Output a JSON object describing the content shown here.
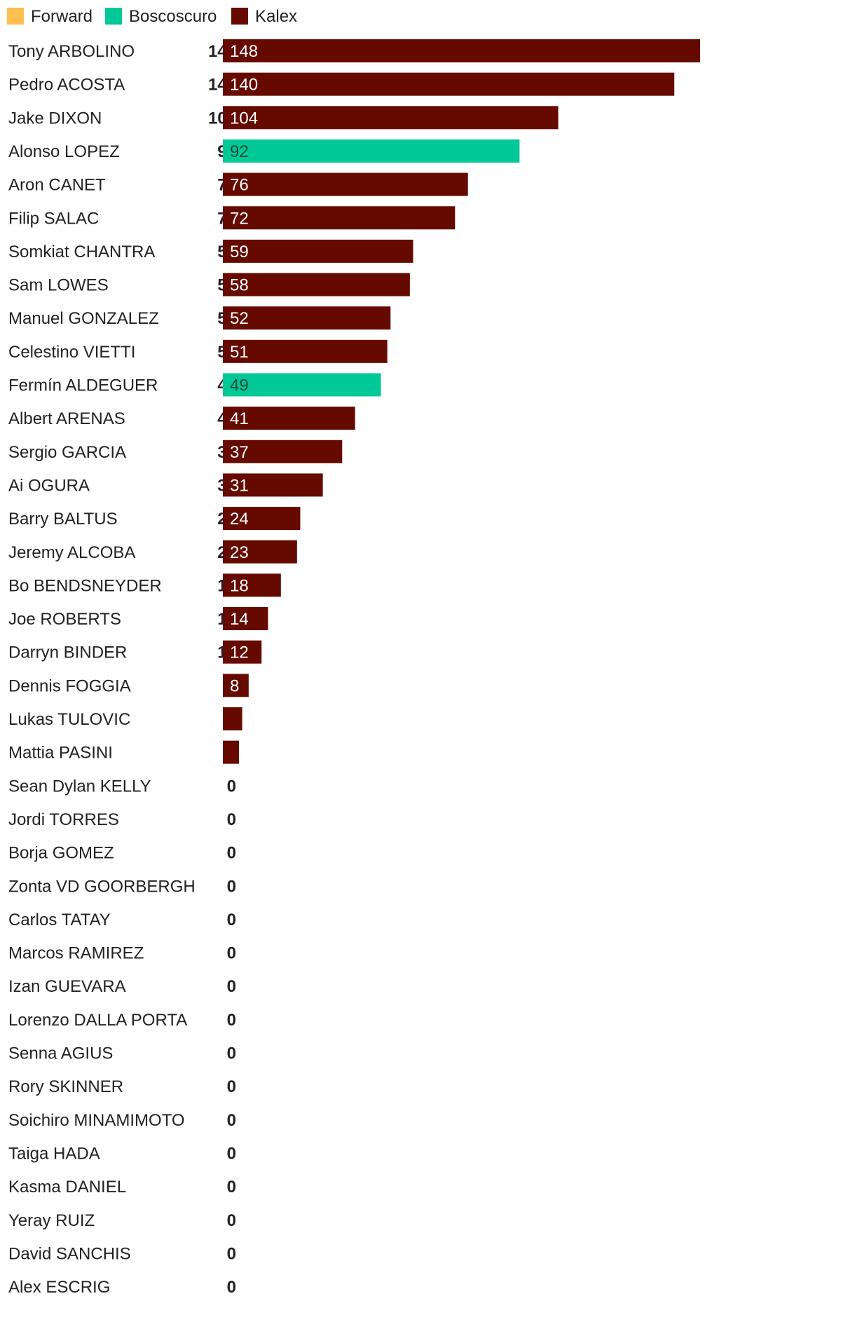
{
  "chart_data": {
    "type": "bar",
    "orientation": "horizontal",
    "legend": [
      {
        "name": "Forward",
        "color": "#FDBF4F"
      },
      {
        "name": "Boscoscuro",
        "color": "#00C896"
      },
      {
        "name": "Kalex",
        "color": "#660A00"
      }
    ],
    "legend_position": "top-left",
    "grid": false,
    "xlim": [
      0,
      148
    ],
    "rows": [
      {
        "name": "Tony ARBOLINO",
        "total": "148",
        "value": 148,
        "team": "Kalex",
        "label": "148"
      },
      {
        "name": "Pedro ACOSTA",
        "total": "140",
        "value": 140,
        "team": "Kalex",
        "label": "140"
      },
      {
        "name": "Jake DIXON",
        "total": "104",
        "value": 104,
        "team": "Kalex",
        "label": "104"
      },
      {
        "name": "Alonso LOPEZ",
        "total": "92",
        "value": 92,
        "team": "Boscoscuro",
        "label": "92"
      },
      {
        "name": "Aron CANET",
        "total": "76",
        "value": 76,
        "team": "Kalex",
        "label": "76"
      },
      {
        "name": "Filip SALAC",
        "total": "72",
        "value": 72,
        "team": "Kalex",
        "label": "72"
      },
      {
        "name": "Somkiat CHANTRA",
        "total": "59",
        "value": 59,
        "team": "Kalex",
        "label": "59"
      },
      {
        "name": "Sam LOWES",
        "total": "58",
        "value": 58,
        "team": "Kalex",
        "label": "58"
      },
      {
        "name": "Manuel GONZALEZ",
        "total": "52",
        "value": 52,
        "team": "Kalex",
        "label": "52"
      },
      {
        "name": "Celestino VIETTI",
        "total": "51",
        "value": 51,
        "team": "Kalex",
        "label": "51"
      },
      {
        "name": "Fermín ALDEGUER",
        "total": "49",
        "value": 49,
        "team": "Boscoscuro",
        "label": "49"
      },
      {
        "name": "Albert ARENAS",
        "total": "41",
        "value": 41,
        "team": "Kalex",
        "label": "41"
      },
      {
        "name": "Sergio GARCIA",
        "total": "37",
        "value": 37,
        "team": "Kalex",
        "label": "37"
      },
      {
        "name": "Ai OGURA",
        "total": "31",
        "value": 31,
        "team": "Kalex",
        "label": "31"
      },
      {
        "name": "Barry BALTUS",
        "total": "24",
        "value": 24,
        "team": "Kalex",
        "label": "24"
      },
      {
        "name": "Jeremy ALCOBA",
        "total": "23",
        "value": 23,
        "team": "Kalex",
        "label": "23"
      },
      {
        "name": "Bo BENDSNEYDER",
        "total": "18",
        "value": 18,
        "team": "Kalex",
        "label": "18"
      },
      {
        "name": "Joe ROBERTS",
        "total": "14",
        "value": 14,
        "team": "Kalex",
        "label": "14"
      },
      {
        "name": "Darryn BINDER",
        "total": "12",
        "value": 12,
        "team": "Kalex",
        "label": "12"
      },
      {
        "name": "Dennis FOGGIA",
        "total": "8",
        "value": 8,
        "team": "Kalex",
        "label": "8"
      },
      {
        "name": "Lukas TULOVIC",
        "total": "6",
        "value": 6,
        "team": "Kalex",
        "label": ""
      },
      {
        "name": "Mattia PASINI",
        "total": "5",
        "value": 5,
        "team": "Kalex",
        "label": ""
      },
      {
        "name": "Sean Dylan KELLY",
        "total": "0",
        "value": 0,
        "team": "Kalex",
        "label": ""
      },
      {
        "name": "Jordi TORRES",
        "total": "0",
        "value": 0,
        "team": "Kalex",
        "label": ""
      },
      {
        "name": "Borja GOMEZ",
        "total": "0",
        "value": 0,
        "team": "Kalex",
        "label": ""
      },
      {
        "name": "Zonta VD GOORBERGH",
        "total": "0",
        "value": 0,
        "team": "Kalex",
        "label": ""
      },
      {
        "name": "Carlos TATAY",
        "total": "0",
        "value": 0,
        "team": "Kalex",
        "label": ""
      },
      {
        "name": "Marcos RAMIREZ",
        "total": "0",
        "value": 0,
        "team": "Kalex",
        "label": ""
      },
      {
        "name": "Izan GUEVARA",
        "total": "0",
        "value": 0,
        "team": "Kalex",
        "label": ""
      },
      {
        "name": "Lorenzo DALLA PORTA",
        "total": "0",
        "value": 0,
        "team": "Kalex",
        "label": ""
      },
      {
        "name": "Senna AGIUS",
        "total": "0",
        "value": 0,
        "team": "Kalex",
        "label": ""
      },
      {
        "name": "Rory SKINNER",
        "total": "0",
        "value": 0,
        "team": "Kalex",
        "label": ""
      },
      {
        "name": "Soichiro MINAMIMOTO",
        "total": "0",
        "value": 0,
        "team": "Kalex",
        "label": ""
      },
      {
        "name": "Taiga HADA",
        "total": "0",
        "value": 0,
        "team": "Kalex",
        "label": ""
      },
      {
        "name": "Kasma DANIEL",
        "total": "0",
        "value": 0,
        "team": "Kalex",
        "label": ""
      },
      {
        "name": "Yeray RUIZ",
        "total": "0",
        "value": 0,
        "team": "Kalex",
        "label": ""
      },
      {
        "name": "David SANCHIS",
        "total": "0",
        "value": 0,
        "team": "Kalex",
        "label": ""
      },
      {
        "name": "Alex ESCRIG",
        "total": "0",
        "value": 0,
        "team": "Kalex",
        "label": ""
      }
    ]
  }
}
